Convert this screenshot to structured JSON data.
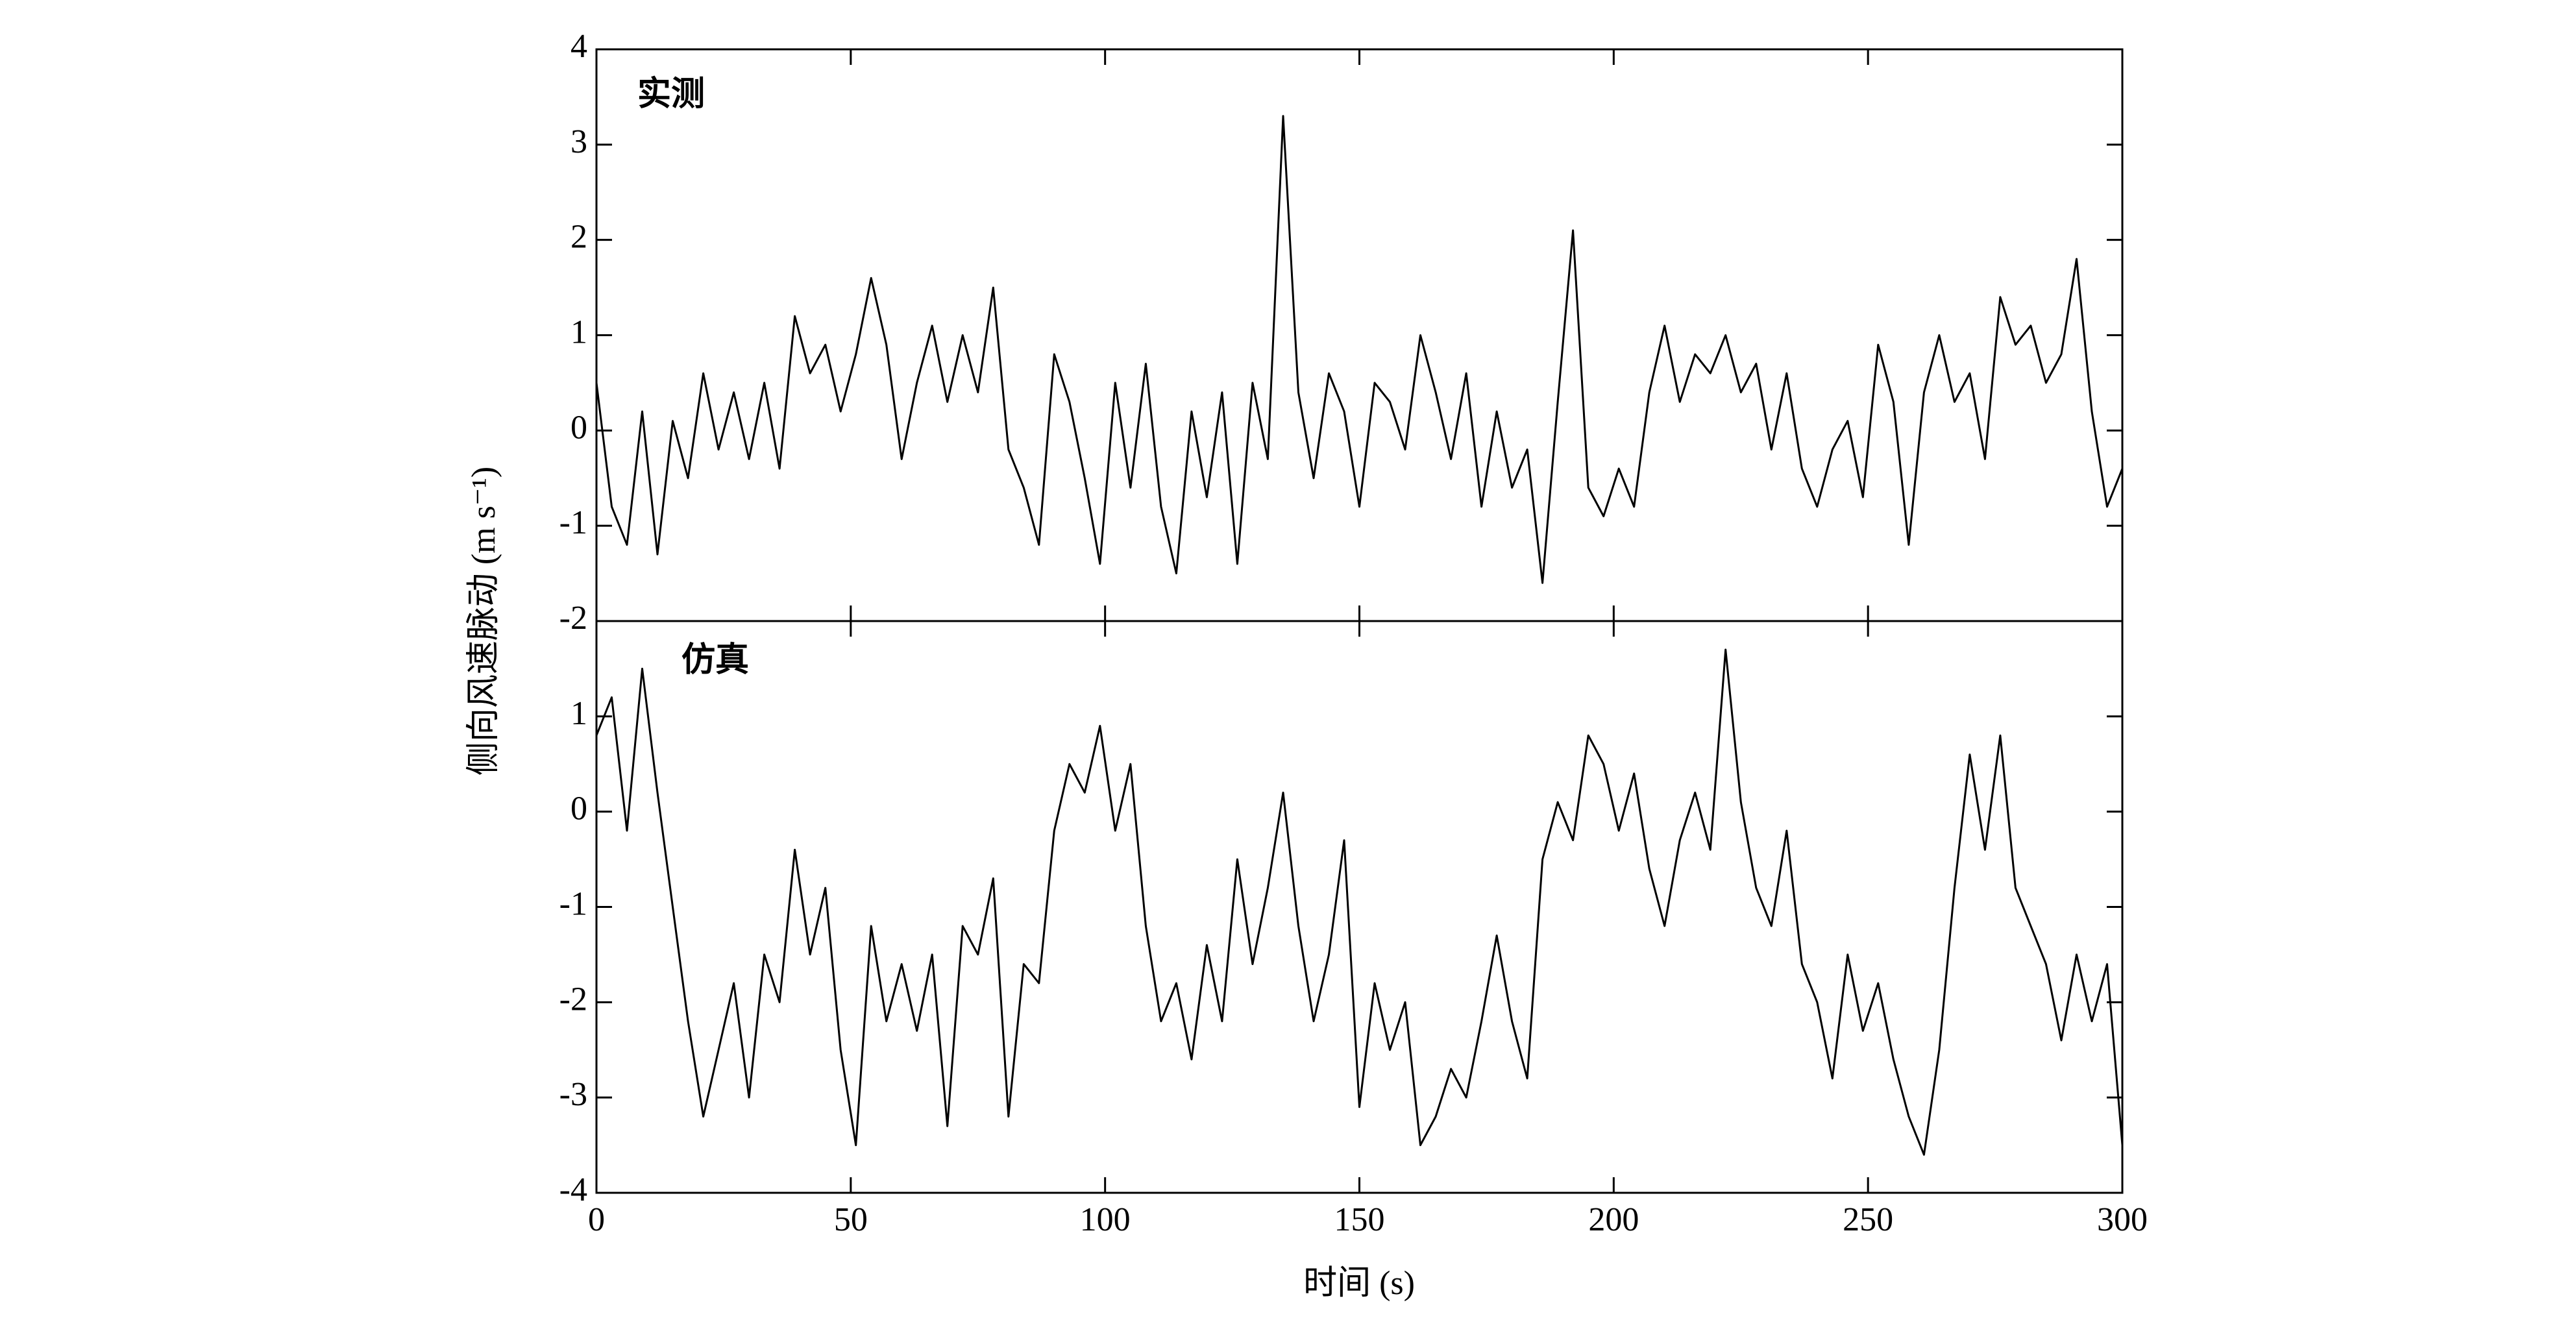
{
  "chart_data": [
    {
      "type": "line",
      "annotation": "实测",
      "ylabel": "侧向风速脉动 (m s⁻¹)",
      "color": "#000000",
      "xlim": [
        0,
        300
      ],
      "xticks": [
        0,
        50,
        100,
        150,
        200,
        250,
        300
      ],
      "ylim": [
        -2,
        4
      ],
      "yticks": [
        -2,
        -1,
        0,
        1,
        2,
        3,
        4
      ],
      "x": [
        0,
        3,
        6,
        9,
        12,
        15,
        18,
        21,
        24,
        27,
        30,
        33,
        36,
        39,
        42,
        45,
        48,
        51,
        54,
        57,
        60,
        63,
        66,
        69,
        72,
        75,
        78,
        81,
        84,
        87,
        90,
        93,
        96,
        99,
        102,
        105,
        108,
        111,
        114,
        117,
        120,
        123,
        126,
        129,
        132,
        135,
        138,
        141,
        144,
        147,
        150,
        153,
        156,
        159,
        162,
        165,
        168,
        171,
        174,
        177,
        180,
        183,
        186,
        189,
        192,
        195,
        198,
        201,
        204,
        207,
        210,
        213,
        216,
        219,
        222,
        225,
        228,
        231,
        234,
        237,
        240,
        243,
        246,
        249,
        252,
        255,
        258,
        261,
        264,
        267,
        270,
        273,
        276,
        279,
        282,
        285,
        288,
        291,
        294,
        297,
        300
      ],
      "values": [
        0.5,
        -0.8,
        -1.2,
        0.2,
        -1.3,
        0.1,
        -0.5,
        0.6,
        -0.2,
        0.4,
        -0.3,
        0.5,
        -0.4,
        1.2,
        0.6,
        0.9,
        0.2,
        0.8,
        1.6,
        0.9,
        -0.3,
        0.5,
        1.1,
        0.3,
        1.0,
        0.4,
        1.5,
        -0.2,
        -0.6,
        -1.2,
        0.8,
        0.3,
        -0.5,
        -1.4,
        0.5,
        -0.6,
        0.7,
        -0.8,
        -1.5,
        0.2,
        -0.7,
        0.4,
        -1.4,
        0.5,
        -0.3,
        3.3,
        0.4,
        -0.5,
        0.6,
        0.2,
        -0.8,
        0.5,
        0.3,
        -0.2,
        1.0,
        0.4,
        -0.3,
        0.6,
        -0.8,
        0.2,
        -0.6,
        -0.2,
        -1.6,
        0.3,
        2.1,
        -0.6,
        -0.9,
        -0.4,
        -0.8,
        0.4,
        1.1,
        0.3,
        0.8,
        0.6,
        1.0,
        0.4,
        0.7,
        -0.2,
        0.6,
        -0.4,
        -0.8,
        -0.2,
        0.1,
        -0.7,
        0.9,
        0.3,
        -1.2,
        0.4,
        1.0,
        0.3,
        0.6,
        -0.3,
        1.4,
        0.9,
        1.1,
        0.5,
        0.8,
        1.8,
        0.2,
        -0.8,
        -0.4
      ]
    },
    {
      "type": "line",
      "annotation": "仿真",
      "xlabel": "时间 (s)",
      "color": "#000000",
      "xlim": [
        0,
        300
      ],
      "xticks": [
        0,
        50,
        100,
        150,
        200,
        250,
        300
      ],
      "ylim": [
        -4,
        2
      ],
      "yticks": [
        -4,
        -3,
        -2,
        -1,
        0,
        1
      ],
      "x": [
        0,
        3,
        6,
        9,
        12,
        15,
        18,
        21,
        24,
        27,
        30,
        33,
        36,
        39,
        42,
        45,
        48,
        51,
        54,
        57,
        60,
        63,
        66,
        69,
        72,
        75,
        78,
        81,
        84,
        87,
        90,
        93,
        96,
        99,
        102,
        105,
        108,
        111,
        114,
        117,
        120,
        123,
        126,
        129,
        132,
        135,
        138,
        141,
        144,
        147,
        150,
        153,
        156,
        159,
        162,
        165,
        168,
        171,
        174,
        177,
        180,
        183,
        186,
        189,
        192,
        195,
        198,
        201,
        204,
        207,
        210,
        213,
        216,
        219,
        222,
        225,
        228,
        231,
        234,
        237,
        240,
        243,
        246,
        249,
        252,
        255,
        258,
        261,
        264,
        267,
        270,
        273,
        276,
        279,
        282,
        285,
        288,
        291,
        294,
        297,
        300
      ],
      "values": [
        0.8,
        1.2,
        -0.2,
        1.5,
        0.2,
        -1,
        -2.2,
        -3.2,
        -2.5,
        -1.8,
        -3,
        -1.5,
        -2,
        -0.4,
        -1.5,
        -0.8,
        -2.5,
        -3.5,
        -1.2,
        -2.2,
        -1.6,
        -2.3,
        -1.5,
        -3.3,
        -1.2,
        -1.5,
        -0.7,
        -3.2,
        -1.6,
        -1.8,
        -0.2,
        0.5,
        0.2,
        0.9,
        -0.2,
        0.5,
        -1.2,
        -2.2,
        -1.8,
        -2.6,
        -1.4,
        -2.2,
        -0.5,
        -1.6,
        -0.8,
        0.2,
        -1.2,
        -2.2,
        -1.5,
        -0.3,
        -3.1,
        -1.8,
        -2.5,
        -2.0,
        -3.5,
        -3.2,
        -2.7,
        -3.0,
        -2.2,
        -1.3,
        -2.2,
        -2.8,
        -0.5,
        0.1,
        -0.3,
        0.8,
        0.5,
        -0.2,
        0.4,
        -0.6,
        -1.2,
        -0.3,
        0.2,
        -0.4,
        1.7,
        0.1,
        -0.8,
        -1.2,
        -0.2,
        -1.6,
        -2.0,
        -2.8,
        -1.5,
        -2.3,
        -1.8,
        -2.6,
        -3.2,
        -3.6,
        -2.5,
        -0.8,
        0.6,
        -0.4,
        0.8,
        -0.8,
        -1.2,
        -1.6,
        -2.4,
        -1.5,
        -2.2,
        -1.6,
        -3.5
      ]
    }
  ]
}
